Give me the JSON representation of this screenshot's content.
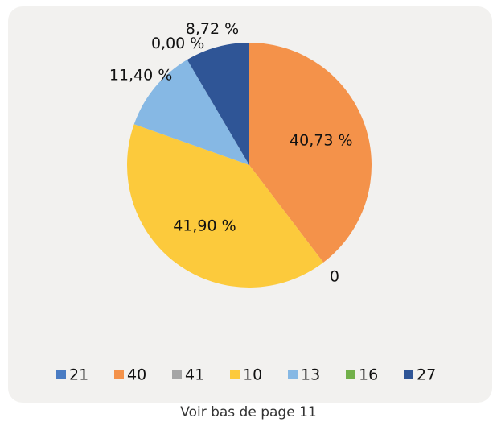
{
  "chart_data": {
    "type": "pie",
    "categories": [
      "21",
      "40",
      "41",
      "10",
      "13",
      "16",
      "27"
    ],
    "values": [
      0,
      40.73,
      0,
      41.9,
      11.4,
      0,
      8.72
    ],
    "value_labels": [
      null,
      "40,73 %",
      "0",
      "41,90 %",
      "11,40 %",
      "0,00 %",
      "8,72  %"
    ],
    "colors": [
      "#4a7cc3",
      "#f4924a",
      "#a5a5a5",
      "#fcca3c",
      "#86b8e4",
      "#72b04a",
      "#2f5596"
    ],
    "legend": "bottom",
    "footnote": "Voir bas de page 11"
  }
}
